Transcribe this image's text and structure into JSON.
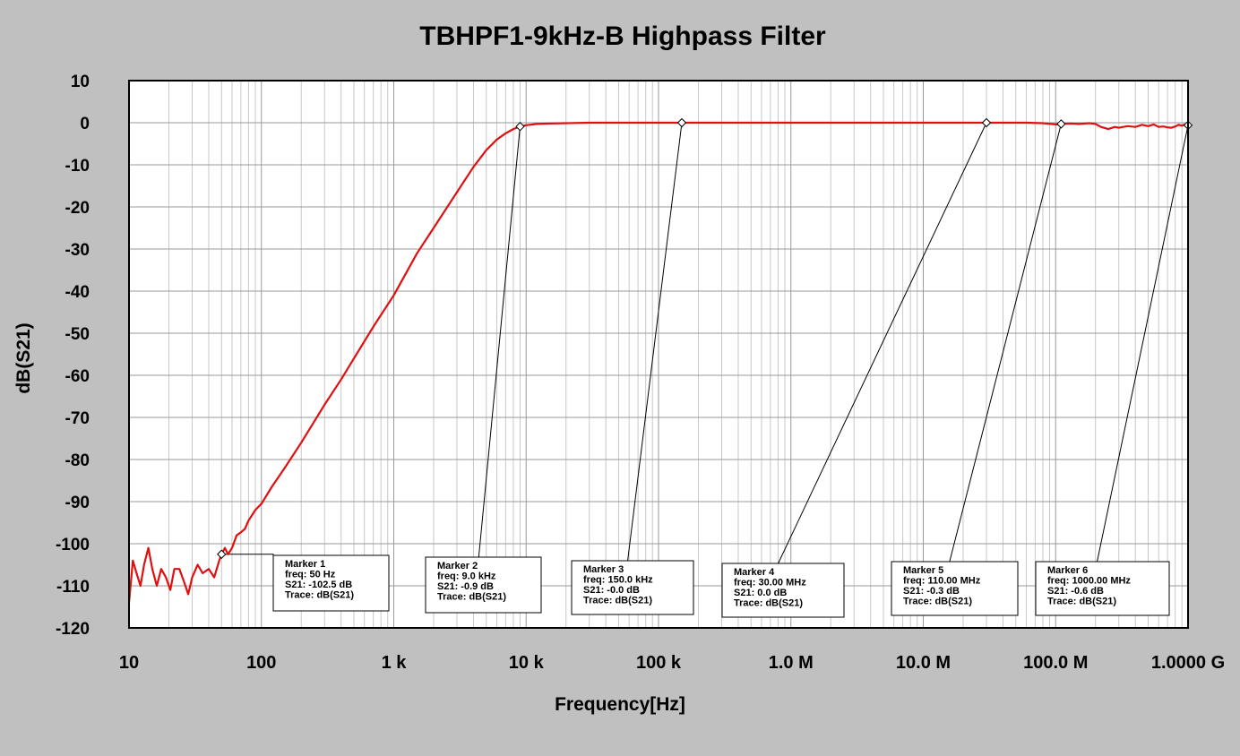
{
  "chart_data": {
    "type": "line",
    "title": "TBHPF1-9kHz-B  Highpass Filter",
    "xlabel": "Frequency[Hz]",
    "ylabel": "dB(S21)",
    "x_scale": "log",
    "xlim": [
      10,
      1000000000
    ],
    "ylim": [
      -120,
      10
    ],
    "grid": true,
    "xtick_labels": [
      {
        "value": 10,
        "label": "10"
      },
      {
        "value": 100,
        "label": "100"
      },
      {
        "value": 1000,
        "label": "1   k"
      },
      {
        "value": 10000,
        "label": "10  k"
      },
      {
        "value": 100000,
        "label": "100 k"
      },
      {
        "value": 1000000,
        "label": "1.0 M"
      },
      {
        "value": 10000000,
        "label": "10.0 M"
      },
      {
        "value": 100000000,
        "label": "100.0 M"
      },
      {
        "value": 1000000000,
        "label": "1.0000 G"
      }
    ],
    "ytick_labels": [
      "10",
      "0",
      "-10",
      "-20",
      "-30",
      "-40",
      "-50",
      "-60",
      "-70",
      "-80",
      "-90",
      "-100",
      "-110",
      "-120"
    ],
    "series": [
      {
        "color": "#e01010",
        "points": [
          [
            10,
            -114
          ],
          [
            10.7,
            -104
          ],
          [
            11.4,
            -107
          ],
          [
            12.2,
            -110
          ],
          [
            13,
            -105
          ],
          [
            14,
            -101
          ],
          [
            15,
            -106
          ],
          [
            16.2,
            -110
          ],
          [
            17.5,
            -106
          ],
          [
            19,
            -108
          ],
          [
            20.5,
            -111
          ],
          [
            22,
            -106
          ],
          [
            24,
            -106
          ],
          [
            26,
            -109
          ],
          [
            28,
            -112
          ],
          [
            30,
            -108
          ],
          [
            33,
            -105
          ],
          [
            36,
            -107
          ],
          [
            40,
            -106
          ],
          [
            44,
            -108
          ],
          [
            48,
            -104
          ],
          [
            50,
            -102.5
          ],
          [
            53,
            -101
          ],
          [
            56,
            -102.5
          ],
          [
            60,
            -101
          ],
          [
            65,
            -98
          ],
          [
            70,
            -97.3
          ],
          [
            75,
            -96.5
          ],
          [
            80,
            -94.5
          ],
          [
            90,
            -92
          ],
          [
            100,
            -90.5
          ],
          [
            120,
            -86.5
          ],
          [
            150,
            -82
          ],
          [
            200,
            -76
          ],
          [
            300,
            -67
          ],
          [
            400,
            -61
          ],
          [
            500,
            -56
          ],
          [
            700,
            -48.5
          ],
          [
            1000,
            -41
          ],
          [
            1500,
            -31
          ],
          [
            2000,
            -25
          ],
          [
            3000,
            -16.5
          ],
          [
            4000,
            -10.5
          ],
          [
            5000,
            -6.5
          ],
          [
            6000,
            -4
          ],
          [
            7000,
            -2.5
          ],
          [
            8000,
            -1.5
          ],
          [
            9000,
            -0.9
          ],
          [
            10000,
            -0.6
          ],
          [
            12000,
            -0.3
          ],
          [
            15000,
            -0.2
          ],
          [
            20000,
            -0.1
          ],
          [
            30000,
            0
          ],
          [
            50000,
            0
          ],
          [
            100000,
            0
          ],
          [
            150000,
            0
          ],
          [
            1000000,
            0
          ],
          [
            10000000,
            0
          ],
          [
            30000000,
            0
          ],
          [
            60000000,
            0
          ],
          [
            80000000,
            -0.1
          ],
          [
            100000000,
            -0.4
          ],
          [
            110000000,
            -0.3
          ],
          [
            130000000,
            -0.2
          ],
          [
            150000000,
            -0.3
          ],
          [
            180000000,
            -0.1
          ],
          [
            200000000,
            -0.3
          ],
          [
            220000000,
            -1.0
          ],
          [
            250000000,
            -1.5
          ],
          [
            280000000,
            -1.0
          ],
          [
            300000000,
            -1.2
          ],
          [
            350000000,
            -0.8
          ],
          [
            400000000,
            -1.0
          ],
          [
            450000000,
            -0.5
          ],
          [
            500000000,
            -0.8
          ],
          [
            550000000,
            -0.4
          ],
          [
            600000000,
            -1.0
          ],
          [
            650000000,
            -0.9
          ],
          [
            700000000,
            -1.1
          ],
          [
            750000000,
            -1.2
          ],
          [
            800000000,
            -0.9
          ],
          [
            850000000,
            -0.5
          ],
          [
            900000000,
            -0.7
          ],
          [
            950000000,
            -0.4
          ],
          [
            1000000000,
            -0.6
          ]
        ]
      }
    ],
    "markers": [
      {
        "freq_hz": 50,
        "db": -102.5,
        "lines": [
          "Marker 1",
          "freq: 50   Hz",
          "S21: -102.5  dB",
          "Trace: dB(S21)"
        ]
      },
      {
        "freq_hz": 9000,
        "db": -0.9,
        "lines": [
          "Marker 2",
          "freq: 9.0 kHz",
          "S21: -0.9  dB",
          "Trace: dB(S21)"
        ]
      },
      {
        "freq_hz": 150000,
        "db": 0,
        "lines": [
          "Marker 3",
          "freq: 150.0 kHz",
          "S21: -0.0  dB",
          "Trace: dB(S21)"
        ]
      },
      {
        "freq_hz": 30000000,
        "db": 0,
        "lines": [
          "Marker 4",
          "freq: 30.00 MHz",
          "S21: 0.0  dB",
          "Trace: dB(S21)"
        ]
      },
      {
        "freq_hz": 110000000,
        "db": -0.3,
        "lines": [
          "Marker 5",
          "freq: 110.00 MHz",
          "S21: -0.3  dB",
          "Trace: dB(S21)"
        ]
      },
      {
        "freq_hz": 1000000000,
        "db": -0.6,
        "lines": [
          "Marker 6",
          "freq: 1000.00 MHz",
          "S21: -0.6  dB",
          "Trace: dB(S21)"
        ]
      }
    ]
  }
}
